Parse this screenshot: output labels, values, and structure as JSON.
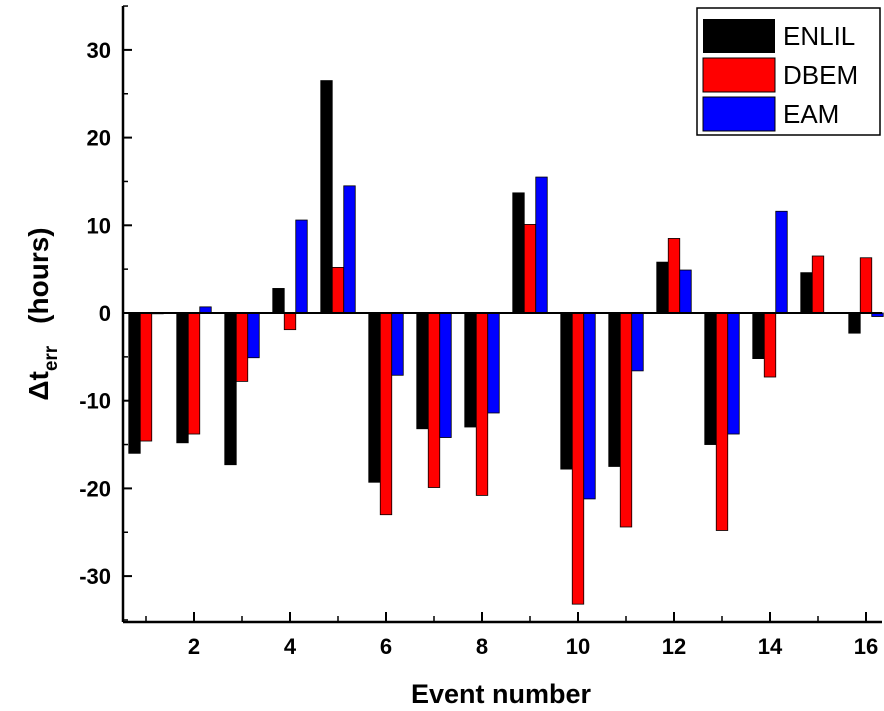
{
  "chart_data": {
    "type": "bar",
    "categories": [
      1,
      2,
      3,
      4,
      5,
      6,
      7,
      8,
      9,
      10,
      11,
      12,
      13,
      14,
      15,
      16
    ],
    "x_tick_labels": [
      "2",
      "4",
      "6",
      "8",
      "10",
      "12",
      "14",
      "16"
    ],
    "y_tick_labels": [
      "30",
      "20",
      "10",
      "0",
      "-10",
      "-20",
      "-30"
    ],
    "xlabel": "Event number",
    "ylabel_main": "Δt",
    "ylabel_sub": "err",
    "ylabel_unit": "(hours)",
    "ylim": [
      -35,
      35
    ],
    "xlim": [
      0.5,
      16.5
    ],
    "legend_position": "top-right",
    "grid": false,
    "series": [
      {
        "name": "ENLIL",
        "color": "#000000",
        "values": [
          -16,
          -14.8,
          -17.3,
          2.8,
          26.5,
          -19.3,
          -13.2,
          -13,
          13.7,
          -17.8,
          -17.5,
          5.8,
          -15,
          -5.2,
          4.6,
          -2.3
        ]
      },
      {
        "name": "DBEM",
        "color": "#ff0000",
        "values": [
          -14.6,
          -13.8,
          -7.8,
          -1.9,
          5.2,
          -23,
          -19.9,
          -20.8,
          10.1,
          -33.2,
          -24.4,
          8.5,
          -24.8,
          -7.3,
          6.5,
          6.3
        ]
      },
      {
        "name": "EAM",
        "color": "#0000ff",
        "values": [
          0,
          0.7,
          -5.1,
          10.6,
          14.5,
          -7.1,
          -14.2,
          -11.4,
          15.5,
          -21.2,
          -6.6,
          4.9,
          -13.8,
          11.6,
          null,
          -0.4
        ]
      }
    ]
  }
}
